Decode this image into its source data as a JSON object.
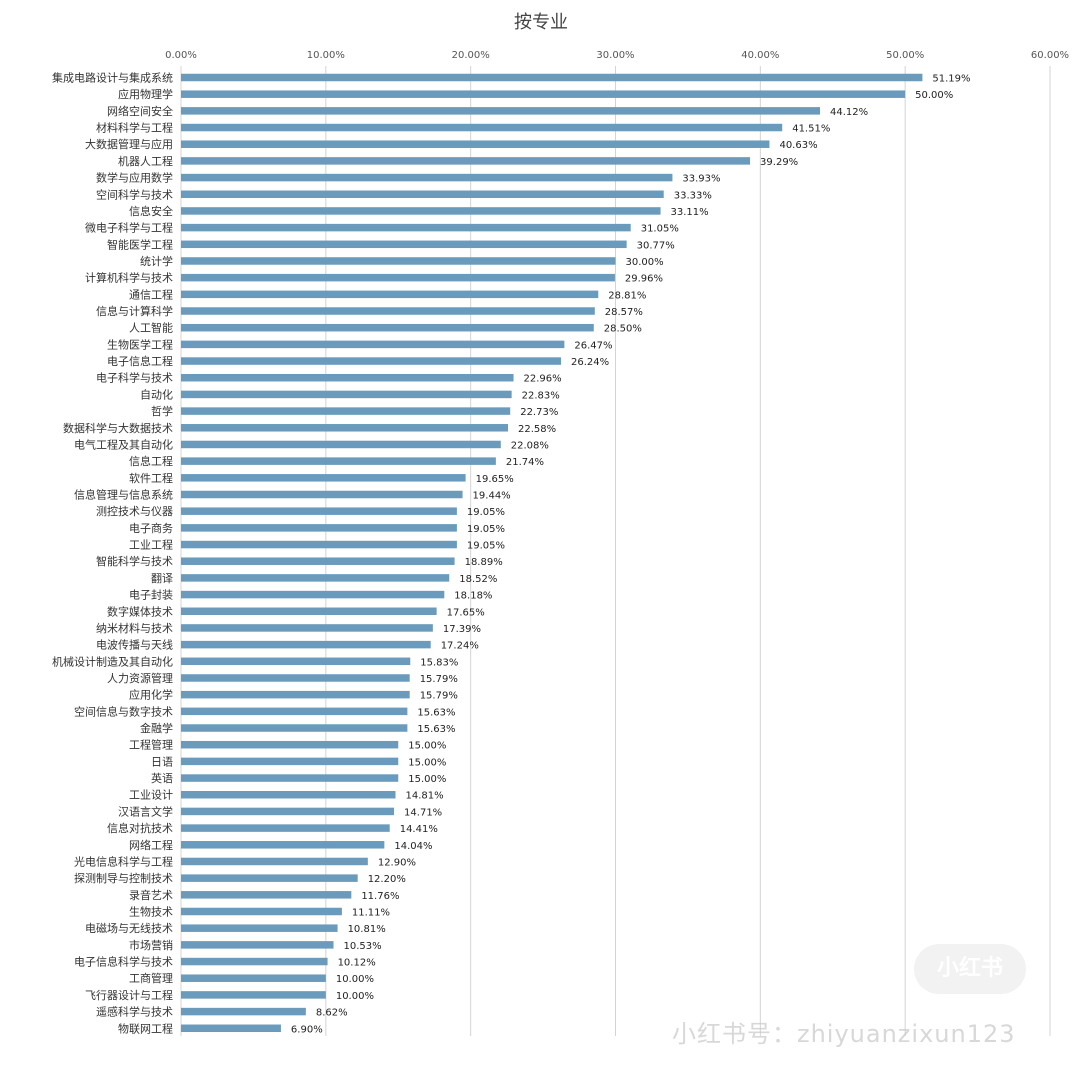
{
  "chart_data": {
    "type": "bar",
    "orientation": "horizontal",
    "title": "按专业",
    "xlim": [
      0,
      60
    ],
    "x_ticks": [
      "0.00%",
      "10.00%",
      "20.00%",
      "30.00%",
      "40.00%",
      "50.00%",
      "60.00%"
    ],
    "x_tick_position": "top",
    "grid": true,
    "bar_color": "#6a9bbd",
    "categories": [
      "集成电路设计与集成系统",
      "应用物理学",
      "网络空间安全",
      "材料科学与工程",
      "大数据管理与应用",
      "机器人工程",
      "数学与应用数学",
      "空间科学与技术",
      "信息安全",
      "微电子科学与工程",
      "智能医学工程",
      "统计学",
      "计算机科学与技术",
      "通信工程",
      "信息与计算科学",
      "人工智能",
      "生物医学工程",
      "电子信息工程",
      "电子科学与技术",
      "自动化",
      "哲学",
      "数据科学与大数据技术",
      "电气工程及其自动化",
      "信息工程",
      "软件工程",
      "信息管理与信息系统",
      "测控技术与仪器",
      "电子商务",
      "工业工程",
      "智能科学与技术",
      "翻译",
      "电子封装",
      "数字媒体技术",
      "纳米材料与技术",
      "电波传播与天线",
      "机械设计制造及其自动化",
      "人力资源管理",
      "应用化学",
      "空间信息与数字技术",
      "金融学",
      "工程管理",
      "日语",
      "英语",
      "工业设计",
      "汉语言文学",
      "信息对抗技术",
      "网络工程",
      "光电信息科学与工程",
      "探测制导与控制技术",
      "录音艺术",
      "生物技术",
      "电磁场与无线技术",
      "市场营销",
      "电子信息科学与技术",
      "工商管理",
      "飞行器设计与工程",
      "遥感科学与技术",
      "物联网工程"
    ],
    "values": [
      51.19,
      50.0,
      44.12,
      41.51,
      40.63,
      39.29,
      33.93,
      33.33,
      33.11,
      31.05,
      30.77,
      30.0,
      29.96,
      28.81,
      28.57,
      28.5,
      26.47,
      26.24,
      22.96,
      22.83,
      22.73,
      22.58,
      22.08,
      21.74,
      19.65,
      19.44,
      19.05,
      19.05,
      19.05,
      18.89,
      18.52,
      18.18,
      17.65,
      17.39,
      17.24,
      15.83,
      15.79,
      15.79,
      15.63,
      15.63,
      15.0,
      15.0,
      15.0,
      14.81,
      14.71,
      14.41,
      14.04,
      12.9,
      12.2,
      11.76,
      11.11,
      10.81,
      10.53,
      10.12,
      10.0,
      10.0,
      8.62,
      6.9
    ],
    "value_labels": [
      "51.19%",
      "50.00%",
      "44.12%",
      "41.51%",
      "40.63%",
      "39.29%",
      "33.93%",
      "33.33%",
      "33.11%",
      "31.05%",
      "30.77%",
      "30.00%",
      "29.96%",
      "28.81%",
      "28.57%",
      "28.50%",
      "26.47%",
      "26.24%",
      "22.96%",
      "22.83%",
      "22.73%",
      "22.58%",
      "22.08%",
      "21.74%",
      "19.65%",
      "19.44%",
      "19.05%",
      "19.05%",
      "19.05%",
      "18.89%",
      "18.52%",
      "18.18%",
      "17.65%",
      "17.39%",
      "17.24%",
      "15.83%",
      "15.79%",
      "15.79%",
      "15.63%",
      "15.63%",
      "15.00%",
      "15.00%",
      "15.00%",
      "14.81%",
      "14.71%",
      "14.41%",
      "14.04%",
      "12.90%",
      "12.20%",
      "11.76%",
      "11.11%",
      "10.81%",
      "10.53%",
      "10.12%",
      "10.00%",
      "10.00%",
      "8.62%",
      "6.90%"
    ]
  },
  "watermark": {
    "badge": "小红书",
    "account": "小红书号：zhiyuanzixun123"
  }
}
